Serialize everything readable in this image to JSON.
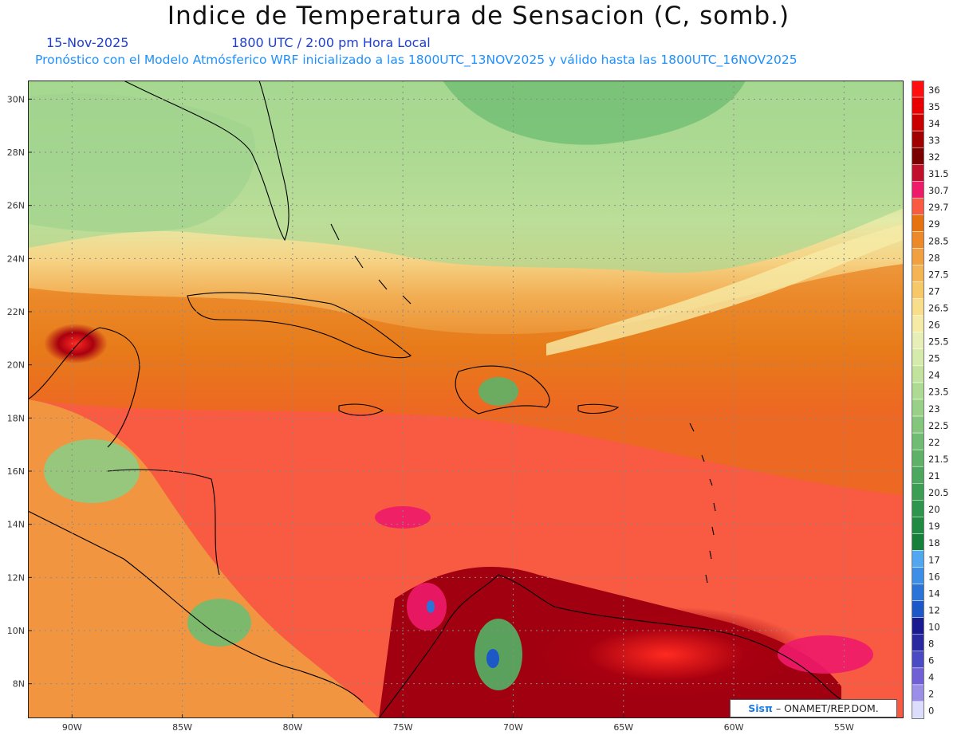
{
  "header": {
    "title": "Indice de Temperatura de Sensacion (C, somb.)",
    "date": "15-Nov-2025",
    "time": "1800 UTC / 2:00 pm Hora Local",
    "forecast_info": "Pronóstico con el Modelo Atmósferico WRF inicializado a las 1800UTC_13NOV2025 y válido hasta las  1800UTC_16NOV2025"
  },
  "map": {
    "lat_labels": [
      "30N",
      "28N",
      "26N",
      "24N",
      "22N",
      "20N",
      "18N",
      "16N",
      "14N",
      "12N",
      "10N",
      "8N"
    ],
    "lon_labels": [
      "90W",
      "85W",
      "80W",
      "75W",
      "70W",
      "65W",
      "60W",
      "55W"
    ],
    "lat_range": [
      6.7,
      30.7
    ],
    "lon_range": [
      -92.0,
      -52.3
    ]
  },
  "legend": {
    "levels": [
      "36",
      "35",
      "34",
      "33",
      "32",
      "31.5",
      "30.7",
      "29.7",
      "29",
      "28.5",
      "28",
      "27.5",
      "27",
      "26.5",
      "26",
      "25.5",
      "25",
      "24",
      "23.5",
      "23",
      "22.5",
      "22",
      "21.5",
      "21",
      "20.5",
      "20",
      "19",
      "18",
      "17",
      "16",
      "14",
      "12",
      "10",
      "8",
      "6",
      "4",
      "2",
      "0"
    ],
    "colors": [
      "#ff1010",
      "#e60000",
      "#c80000",
      "#a00000",
      "#7a0000",
      "#c0102c",
      "#ee1a6a",
      "#f85a42",
      "#e6720f",
      "#ec8a2a",
      "#f0a040",
      "#f4b454",
      "#f6c86a",
      "#f8de8a",
      "#f6eba6",
      "#e8efb6",
      "#d4ebac",
      "#c2e39e",
      "#aedb94",
      "#98d088",
      "#84c67c",
      "#70bc72",
      "#5eb268",
      "#4ca85e",
      "#3c9e54",
      "#2e954c",
      "#1e8a42",
      "#16803a",
      "#52a8f0",
      "#3c8ee6",
      "#2a74d8",
      "#1c58c6",
      "#1a1a90",
      "#2a2aa0",
      "#4a4ac4",
      "#7060d6",
      "#9a8ee6",
      "#dcdcfc"
    ]
  },
  "credit": {
    "logo": "Sisπ",
    "text": "– ONAMET/REP.DOM."
  }
}
